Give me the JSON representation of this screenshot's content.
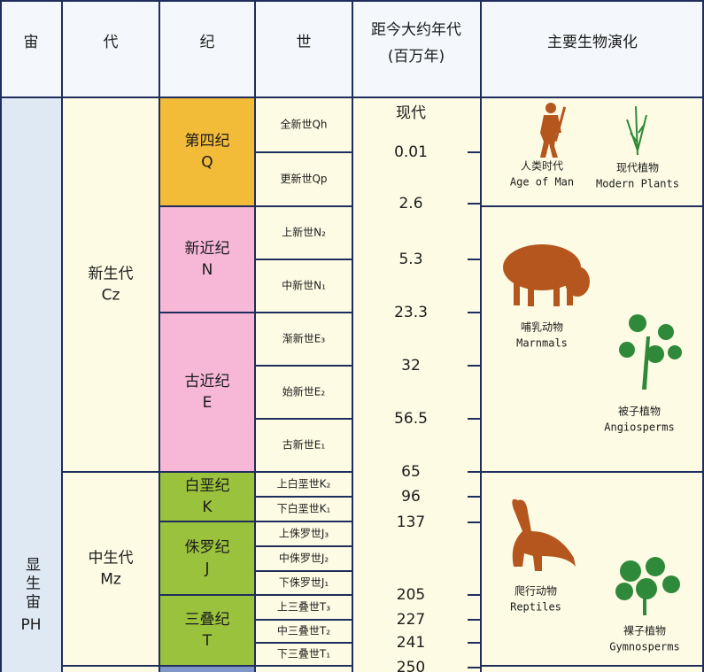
{
  "header": {
    "eon": "宙",
    "era": "代",
    "period": "纪",
    "epoch": "世",
    "age": [
      "距今大约年代",
      "(百万年)"
    ],
    "life": "主要生物演化"
  },
  "eon": {
    "name": "显生宙",
    "code": "PH"
  },
  "eras": [
    {
      "name": "新生代",
      "code": "Cz"
    },
    {
      "name": "中生代",
      "code": "Mz"
    }
  ],
  "periods": [
    {
      "name": "第四纪",
      "code": "Q",
      "epochs": [
        "全新世Qh",
        "更新世Qp"
      ]
    },
    {
      "name": "新近纪",
      "code": "N",
      "epochs": [
        "上新世N₂",
        "中新世N₁"
      ]
    },
    {
      "name": "古近纪",
      "code": "E",
      "epochs": [
        "渐新世E₃",
        "始新世E₂",
        "古新世E₁"
      ]
    },
    {
      "name": "白垩纪",
      "code": "K",
      "epochs": [
        "上白垩世K₂",
        "下白垩世K₁"
      ]
    },
    {
      "name": "侏罗纪",
      "code": "J",
      "epochs": [
        "上侏罗世J₃",
        "中侏罗世J₂",
        "下侏罗世J₁"
      ]
    },
    {
      "name": "三叠纪",
      "code": "T",
      "epochs": [
        "上三叠世T₃",
        "中三叠世T₂",
        "下三叠世T₁"
      ]
    }
  ],
  "ages": [
    "现代",
    0.01,
    2.6,
    5.3,
    23.3,
    32,
    56.5,
    65,
    96,
    137,
    205,
    227,
    241,
    250
  ],
  "life": [
    {
      "animal": {
        "zh": "人类时代",
        "en": "Age of Man"
      },
      "plant": {
        "zh": "现代植物",
        "en": "Modern Plants"
      }
    },
    {
      "animal": {
        "zh": "哺乳动物",
        "en": "Marnmals"
      },
      "plant": {
        "zh": "被子植物",
        "en": "Angiosperms"
      }
    },
    {
      "animal": {
        "zh": "爬行动物",
        "en": "Reptiles"
      },
      "plant": {
        "zh": "裸子植物",
        "en": "Gymnosperms"
      }
    }
  ]
}
